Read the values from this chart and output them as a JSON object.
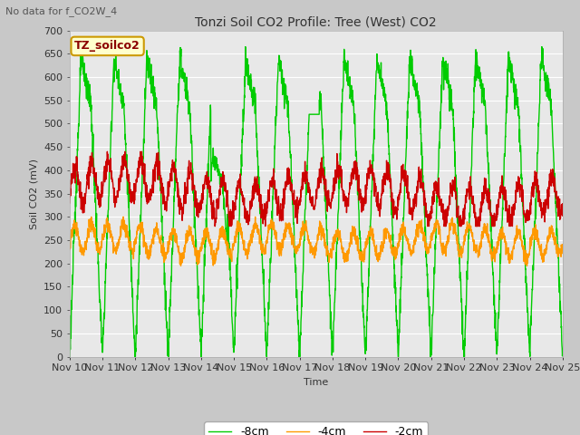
{
  "title": "Tonzi Soil CO2 Profile: Tree (West) CO2",
  "subtitle": "No data for f_CO2W_4",
  "ylabel": "Soil CO2 (mV)",
  "xlabel": "Time",
  "legend_label": "TZ_soilco2",
  "ylim": [
    0,
    700
  ],
  "x_tick_labels": [
    "Nov 10",
    "Nov 11",
    "Nov 12",
    "Nov 13",
    "Nov 14",
    "Nov 15",
    "Nov 16",
    "Nov 17",
    "Nov 18",
    "Nov 19",
    "Nov 20",
    "Nov 21",
    "Nov 22",
    "Nov 23",
    "Nov 24",
    "Nov 25"
  ],
  "line_colors": {
    "2cm": "#cc0000",
    "4cm": "#ff9900",
    "8cm": "#00cc00"
  },
  "fig_bg_color": "#c8c8c8",
  "plot_bg_color": "#e8e8e8",
  "grid_color": "#ffffff",
  "num_points": 2160,
  "title_fontsize": 10,
  "label_fontsize": 8,
  "tick_fontsize": 8
}
